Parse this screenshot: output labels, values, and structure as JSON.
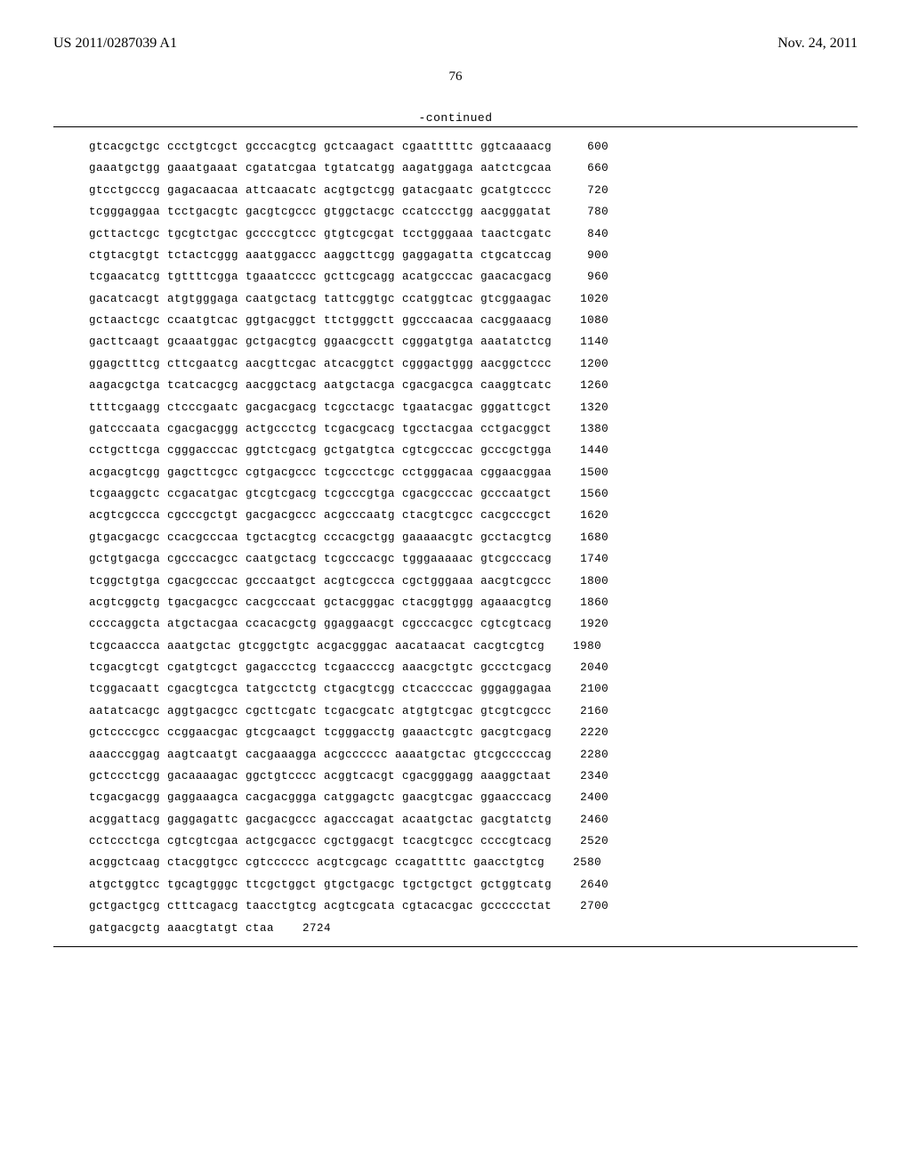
{
  "header": {
    "publication_number": "US 2011/0287039 A1",
    "publication_date": "Nov. 24, 2011"
  },
  "page_number": "76",
  "continued_label": "-continued",
  "sequence": {
    "font_family": "Courier New",
    "font_size_pt": 9,
    "rows": [
      {
        "seq": "gtcacgctgc ccctgtcgct gcccacgtcg gctcaagact cgaatttttc ggtcaaaacg",
        "pos": "600"
      },
      {
        "seq": "gaaatgctgg gaaatgaaat cgatatcgaa tgtatcatgg aagatggaga aatctcgcaa",
        "pos": "660"
      },
      {
        "seq": "gtcctgcccg gagacaacaa attcaacatc acgtgctcgg gatacgaatc gcatgtcccc",
        "pos": "720"
      },
      {
        "seq": "tcgggaggaa tcctgacgtc gacgtcgccc gtggctacgc ccatccctgg aacgggatat",
        "pos": "780"
      },
      {
        "seq": "gcttactcgc tgcgtctgac gccccgtccc gtgtcgcgat tcctgggaaa taactcgatc",
        "pos": "840"
      },
      {
        "seq": "ctgtacgtgt tctactcggg aaatggaccc aaggcttcgg gaggagatta ctgcatccag",
        "pos": "900"
      },
      {
        "seq": "tcgaacatcg tgttttcgga tgaaatcccc gcttcgcagg acatgcccac gaacacgacg",
        "pos": "960"
      },
      {
        "seq": "gacatcacgt atgtgggaga caatgctacg tattcggtgc ccatggtcac gtcggaagac",
        "pos": "1020"
      },
      {
        "seq": "gctaactcgc ccaatgtcac ggtgacggct ttctgggctt ggcccaacaa cacggaaacg",
        "pos": "1080"
      },
      {
        "seq": "gacttcaagt gcaaatggac gctgacgtcg ggaacgcctt cgggatgtga aaatatctcg",
        "pos": "1140"
      },
      {
        "seq": "ggagctttcg cttcgaatcg aacgttcgac atcacggtct cgggactggg aacggctccc",
        "pos": "1200"
      },
      {
        "seq": "aagacgctga tcatcacgcg aacggctacg aatgctacga cgacgacgca caaggtcatc",
        "pos": "1260"
      },
      {
        "seq": "ttttcgaagg ctcccgaatc gacgacgacg tcgcctacgc tgaatacgac gggattcgct",
        "pos": "1320"
      },
      {
        "seq": "gatcccaata cgacgacggg actgccctcg tcgacgcacg tgcctacgaa cctgacggct",
        "pos": "1380"
      },
      {
        "seq": "cctgcttcga cgggacccac ggtctcgacg gctgatgtca cgtcgcccac gcccgctgga",
        "pos": "1440"
      },
      {
        "seq": "acgacgtcgg gagcttcgcc cgtgacgccc tcgccctcgc cctgggacaa cggaacggaa",
        "pos": "1500"
      },
      {
        "seq": "tcgaaggctc ccgacatgac gtcgtcgacg tcgcccgtga cgacgcccac gcccaatgct",
        "pos": "1560"
      },
      {
        "seq": "acgtcgccca cgcccgctgt gacgacgccc acgcccaatg ctacgtcgcc cacgcccgct",
        "pos": "1620"
      },
      {
        "seq": "gtgacgacgc ccacgcccaa tgctacgtcg cccacgctgg gaaaaacgtc gcctacgtcg",
        "pos": "1680"
      },
      {
        "seq": "gctgtgacga cgcccacgcc caatgctacg tcgcccacgc tgggaaaaac gtcgcccacg",
        "pos": "1740"
      },
      {
        "seq": "tcggctgtga cgacgcccac gcccaatgct acgtcgccca cgctgggaaa aacgtcgccc",
        "pos": "1800"
      },
      {
        "seq": "acgtcggctg tgacgacgcc cacgcccaat gctacgggac ctacggtggg agaaacgtcg",
        "pos": "1860"
      },
      {
        "seq": "ccccaggcta atgctacgaa ccacacgctg ggaggaacgt cgcccacgcc cgtcgtcacg",
        "pos": "1920"
      },
      {
        "seq": "tcgcaaccca aaatgctac gtcggctgtc acgacgggac aacataacat cacgtcgtcg",
        "pos": "1980"
      },
      {
        "seq": "tcgacgtcgt cgatgtcgct gagaccctcg tcgaaccccg aaacgctgtc gccctcgacg",
        "pos": "2040"
      },
      {
        "seq": "tcggacaatt cgacgtcgca tatgcctctg ctgacgtcgg ctcaccccac gggaggagaa",
        "pos": "2100"
      },
      {
        "seq": "aatatcacgc aggtgacgcc cgcttcgatc tcgacgcatc atgtgtcgac gtcgtcgccc",
        "pos": "2160"
      },
      {
        "seq": "gctccccgcc ccggaacgac gtcgcaagct tcgggacctg gaaactcgtc gacgtcgacg",
        "pos": "2220"
      },
      {
        "seq": "aaacccggag aagtcaatgt cacgaaagga acgcccccc aaaatgctac gtcgcccccag",
        "pos": "2280"
      },
      {
        "seq": "gctccctcgg gacaaaagac ggctgtcccc acggtcacgt cgacgggagg aaaggctaat",
        "pos": "2340"
      },
      {
        "seq": "tcgacgacgg gaggaaagca cacgacggga catggagctc gaacgtcgac ggaacccacg",
        "pos": "2400"
      },
      {
        "seq": "acggattacg gaggagattc gacgacgccc agacccagat acaatgctac gacgtatctg",
        "pos": "2460"
      },
      {
        "seq": "cctccctcga cgtcgtcgaa actgcgaccc cgctggacgt tcacgtcgcc ccccgtcacg",
        "pos": "2520"
      },
      {
        "seq": "acggctcaag ctacggtgcc cgtcccccc acgtcgcagc ccagattttc gaacctgtcg",
        "pos": "2580"
      },
      {
        "seq": "atgctggtcc tgcagtgggc ttcgctggct gtgctgacgc tgctgctgct gctggtcatg",
        "pos": "2640"
      },
      {
        "seq": "gctgactgcg ctttcagacg taacctgtcg acgtcgcata cgtacacgac gcccccctat",
        "pos": "2700"
      },
      {
        "seq": "gatgacgctg aaacgtatgt ctaa",
        "pos": "2724"
      }
    ]
  }
}
